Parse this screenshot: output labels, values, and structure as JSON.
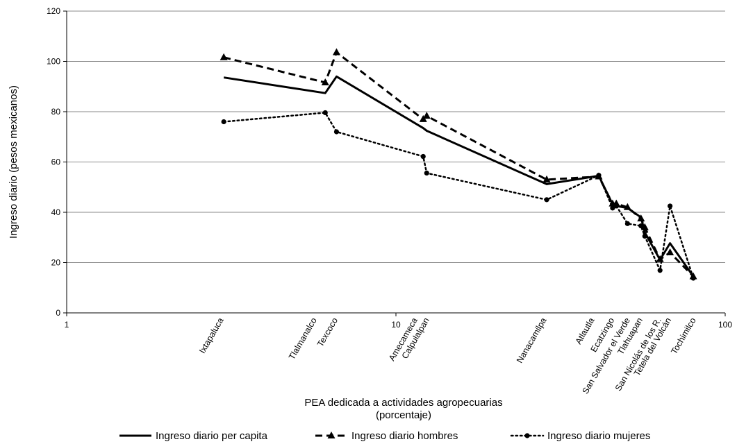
{
  "chart_data": {
    "type": "line",
    "title": "",
    "xlabel": [
      "PEA dedicada a actividades agropecuarias",
      "(porcentaje)"
    ],
    "ylabel": "Ingreso diario (pesos mexicanos)",
    "xscale": "log",
    "xlim": [
      1,
      100
    ],
    "ylim": [
      0,
      120
    ],
    "xticks": [
      "1",
      "10",
      "100"
    ],
    "yticks": [
      "0",
      "20",
      "40",
      "60",
      "80",
      "100",
      "120"
    ],
    "grid": "horizontal",
    "legend_position": "bottom",
    "categories": [
      {
        "label": "Ixtapaluca",
        "x": 3.0
      },
      {
        "label": "Tlalmanalco",
        "x": 6.1
      },
      {
        "label": "Texcoco",
        "x": 6.6
      },
      {
        "label": "Amecameca",
        "x": 12.1
      },
      {
        "label": "Calpulalpan",
        "x": 12.4
      },
      {
        "label": "Nanacamilpa",
        "x": 28.7
      },
      {
        "label": "Atlautla",
        "x": 41.3
      },
      {
        "label": "Ecatzingo",
        "x": 46.1
      },
      {
        "label": "San Salvador el Verde",
        "x": 50.5
      },
      {
        "label": "Tlahuapan",
        "x": 56.2
      },
      {
        "label": "San Nicolás de los R.",
        "x": 63.4
      },
      {
        "label": "Tetela del Volcán",
        "x": 68.0
      },
      {
        "label": "Tochimilco",
        "x": 80.0
      }
    ],
    "series": [
      {
        "name": "Ingreso diario per capita",
        "style": "solid",
        "marker": "none",
        "values": [
          [
            3.0,
            93.6
          ],
          [
            6.1,
            87.4
          ],
          [
            6.6,
            94.0
          ],
          [
            12.1,
            73.5
          ],
          [
            12.4,
            72.4
          ],
          [
            28.7,
            51.2
          ],
          [
            41.3,
            54.5
          ],
          [
            45.5,
            43.2
          ],
          [
            46.7,
            42.5
          ],
          [
            50.5,
            41.7
          ],
          [
            55.5,
            38.0
          ],
          [
            57.0,
            32.0
          ],
          [
            63.4,
            21.1
          ],
          [
            68.0,
            27.7
          ],
          [
            80.0,
            14.5
          ]
        ]
      },
      {
        "name": "Ingreso diario hombres",
        "style": "dashed",
        "marker": "triangle",
        "values": [
          [
            3.0,
            101.6
          ],
          [
            6.1,
            91.6
          ],
          [
            6.6,
            103.6
          ],
          [
            12.1,
            77.0
          ],
          [
            12.4,
            78.3
          ],
          [
            28.7,
            53.0
          ],
          [
            41.3,
            54.2
          ],
          [
            45.5,
            43.4
          ],
          [
            46.7,
            43.4
          ],
          [
            50.5,
            42.0
          ],
          [
            55.5,
            37.5
          ],
          [
            57.0,
            34.0
          ],
          [
            63.4,
            21.3
          ],
          [
            68.0,
            24.0
          ],
          [
            80.0,
            14.5
          ]
        ]
      },
      {
        "name": "Ingreso diario mujeres",
        "style": "dotted",
        "marker": "circle",
        "values": [
          [
            3.0,
            76.0
          ],
          [
            6.1,
            79.6
          ],
          [
            6.6,
            72.0
          ],
          [
            12.1,
            62.2
          ],
          [
            12.4,
            55.6
          ],
          [
            28.7,
            45.0
          ],
          [
            41.3,
            54.7
          ],
          [
            45.5,
            41.7
          ],
          [
            46.7,
            42.5
          ],
          [
            50.5,
            35.5
          ],
          [
            55.5,
            34.6
          ],
          [
            57.0,
            30.5
          ],
          [
            63.4,
            16.9
          ],
          [
            68.0,
            42.5
          ],
          [
            80.0,
            13.8
          ]
        ]
      }
    ]
  }
}
